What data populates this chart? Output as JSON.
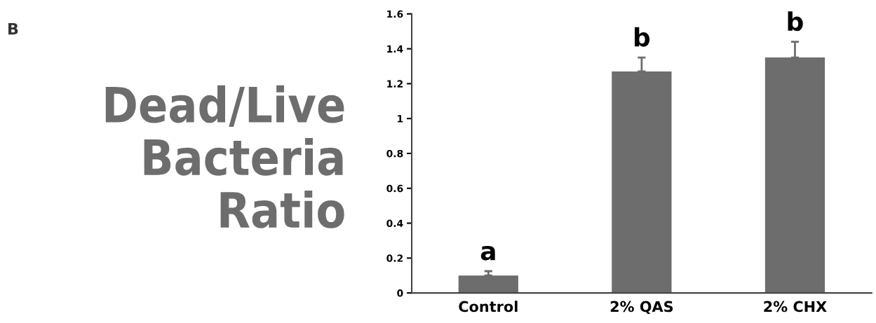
{
  "chart_data": {
    "type": "bar",
    "ylabel": "Dead/Live Bacteria Ratio",
    "categories": [
      "Control",
      "2% QAS",
      "2% CHX"
    ],
    "values": [
      0.1,
      1.27,
      1.35
    ],
    "errors": [
      [
        0.1,
        0.125
      ],
      [
        1.27,
        1.35
      ],
      [
        1.35,
        1.44
      ]
    ],
    "color": "#6d6d6d",
    "ylim": [
      0,
      1.6
    ],
    "yticks": [
      0,
      {
        "value": 0.2,
        "label": "0.2"
      },
      {
        "value": 0.4,
        "label": "0.4"
      },
      {
        "value": 0.6,
        "label": "0.6"
      },
      {
        "value": 0.8,
        "label": "0.8"
      },
      1,
      {
        "value": 1.2,
        "label": "1.2"
      },
      {
        "value": 1.4,
        "label": "1.4"
      },
      {
        "value": 1.6,
        "label": "1.6"
      }
    ],
    "grid": false,
    "legend": false,
    "annotations": [
      "B",
      {
        "text": "a",
        "x": "Control",
        "y": 0.125
      },
      {
        "text": "b",
        "x": "2% QAS",
        "y": 1.35
      },
      {
        "text": "b",
        "x": "2% CHX",
        "y": 1.44
      }
    ]
  }
}
